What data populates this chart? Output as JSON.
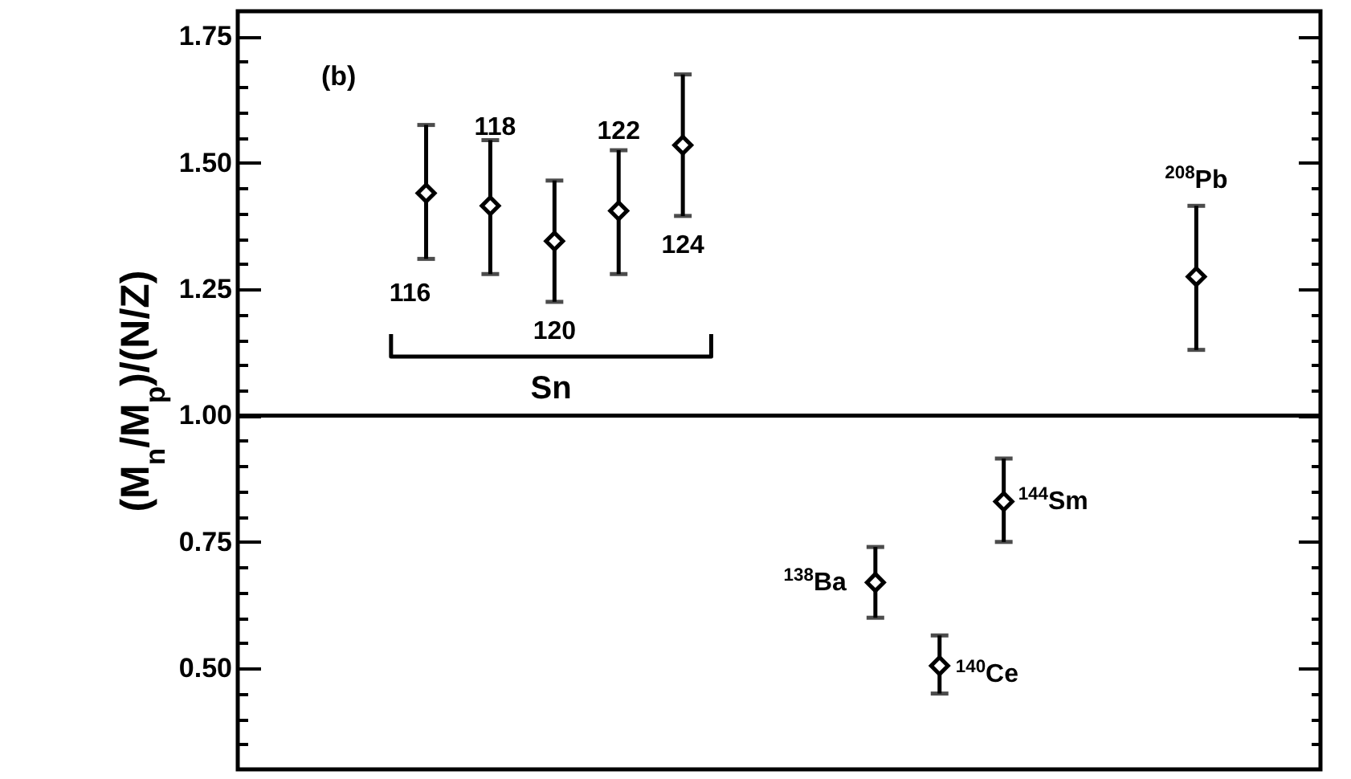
{
  "chart_data": {
    "type": "scatter",
    "ylabel": "(M$_{n}$/M$_{p}$)/(N/Z)",
    "categories": [
      null,
      null,
      null,
      null,
      null,
      null,
      null,
      null,
      null,
      null,
      null,
      null,
      null,
      null,
      null,
      null
    ],
    "values": [
      null,
      null,
      1.44,
      1.415,
      1.345,
      1.405,
      1.535,
      null,
      null,
      0.67,
      0.505,
      0.83,
      null,
      null,
      1.275,
      null
    ],
    "errors": [
      null,
      null,
      [
        1.31,
        1.575
      ],
      [
        1.28,
        1.545
      ],
      [
        1.225,
        1.465
      ],
      [
        1.28,
        1.525
      ],
      [
        1.395,
        1.675
      ],
      null,
      null,
      [
        0.6,
        0.74
      ],
      [
        0.45,
        0.565
      ],
      [
        0.75,
        0.915
      ],
      null,
      null,
      [
        1.13,
        1.415
      ],
      null
    ],
    "color": "#000000",
    "ylim": [
      0.3,
      1.8
    ],
    "yticks": [
      {
        "value": 0.35,
        "label": null
      },
      {
        "value": 0.4,
        "label": null
      },
      {
        "value": 0.45,
        "label": null
      },
      {
        "value": 0.5,
        "label": "0.50"
      },
      {
        "value": 0.55,
        "label": null
      },
      {
        "value": 0.6,
        "label": null
      },
      {
        "value": 0.65,
        "label": null
      },
      {
        "value": 0.7,
        "label": null
      },
      {
        "value": 0.75,
        "label": "0.75"
      },
      {
        "value": 0.8,
        "label": null
      },
      {
        "value": 0.85,
        "label": null
      },
      {
        "value": 0.9,
        "label": null
      },
      {
        "value": 0.95,
        "label": null
      },
      {
        "value": 1.0,
        "label": "1.00"
      },
      {
        "value": 1.05,
        "label": null
      },
      {
        "value": 1.1,
        "label": null
      },
      {
        "value": 1.15,
        "label": null
      },
      {
        "value": 1.2,
        "label": null
      },
      {
        "value": 1.25,
        "label": "1.25"
      },
      {
        "value": 1.3,
        "label": null
      },
      {
        "value": 1.35,
        "label": null
      },
      {
        "value": 1.4,
        "label": null
      },
      {
        "value": 1.45,
        "label": null
      },
      {
        "value": 1.5,
        "label": "1.50"
      },
      {
        "value": 1.55,
        "label": null
      },
      {
        "value": 1.6,
        "label": null
      },
      {
        "value": 1.65,
        "label": null
      },
      {
        "value": 1.7,
        "label": null
      },
      {
        "value": 1.75,
        "label": "1.75"
      }
    ],
    "ref_lines": [
      {
        "axis": "y",
        "value": 1.0,
        "color": "#000000"
      }
    ],
    "annotations": [
      "(b)",
      "116",
      "118",
      "120",
      "122",
      "124",
      "$^{138}$Ba",
      "$^{140}$Ce",
      "$^{144}$Sm",
      "$^{208}$Pb",
      "Sn"
    ],
    "marker": "diamond",
    "grid": false,
    "tick_labels": "y"
  }
}
